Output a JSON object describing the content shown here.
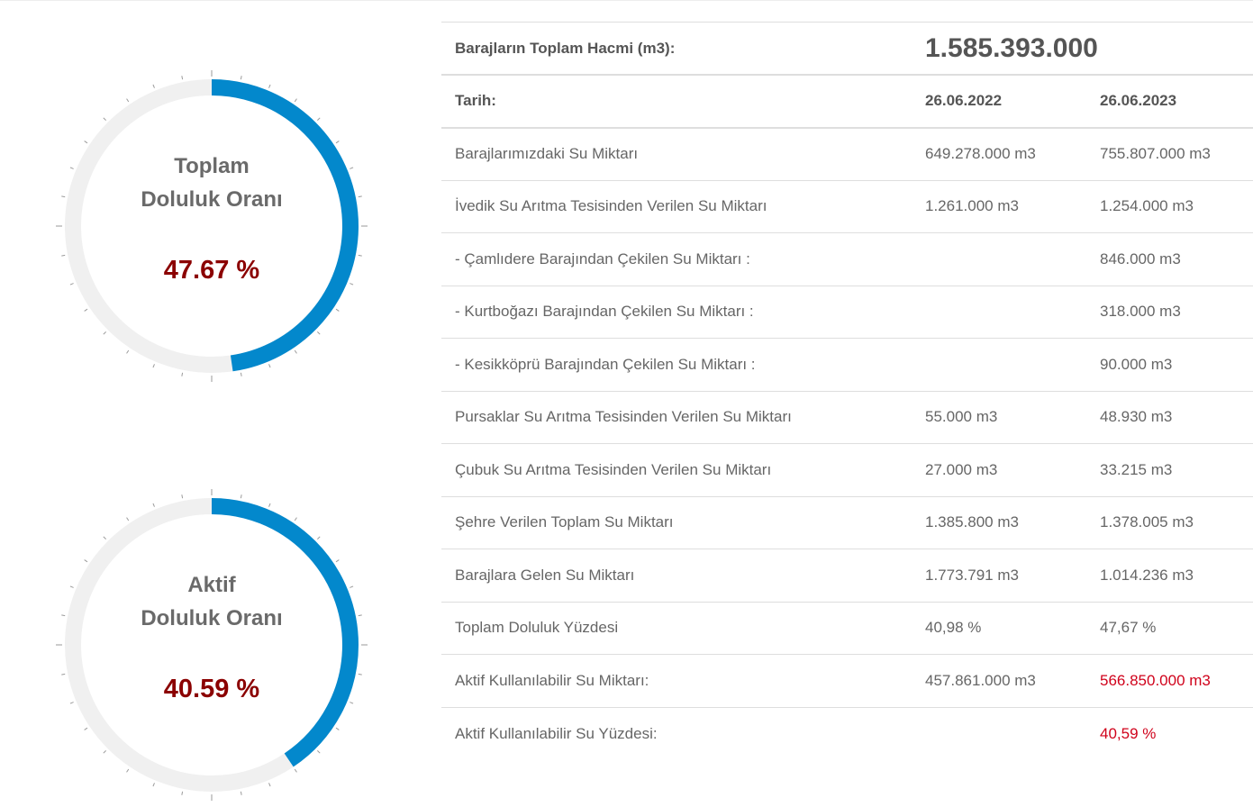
{
  "gauges": [
    {
      "label_line1": "Toplam",
      "label_line2": "Doluluk Oranı",
      "value_text": "47.67 %",
      "fill_percent": 47.67
    },
    {
      "label_line1": "Aktif",
      "label_line2": "Doluluk Oranı",
      "value_text": "40.59 %",
      "fill_percent": 40.59
    }
  ],
  "colors": {
    "gauge_fill": "#0388cc",
    "gauge_track": "#f0f0f0",
    "value": "#8b0000",
    "highlight": "#d0021b"
  },
  "table": {
    "total_label": "Barajların Toplam Hacmi (m3):",
    "total_value": "1.585.393.000",
    "date_label": "Tarih:",
    "date1": "26.06.2022",
    "date2": "26.06.2023",
    "rows": [
      {
        "label": "Barajlarımızdaki Su Miktarı",
        "v1": "649.278.000 m3",
        "v2": "755.807.000 m3"
      },
      {
        "label": "İvedik Su Arıtma Tesisinden Verilen Su Miktarı",
        "v1": "1.261.000 m3",
        "v2": "1.254.000 m3"
      },
      {
        "label": "- Çamlıdere Barajından Çekilen Su Miktarı :",
        "v1": "",
        "v2": "846.000 m3"
      },
      {
        "label": "- Kurtboğazı Barajından Çekilen Su Miktarı :",
        "v1": "",
        "v2": "318.000 m3"
      },
      {
        "label": "- Kesikköprü Barajından Çekilen Su Miktarı :",
        "v1": "",
        "v2": "90.000 m3"
      },
      {
        "label": "Pursaklar Su Arıtma Tesisinden Verilen Su Miktarı",
        "v1": "55.000 m3",
        "v2": "48.930 m3"
      },
      {
        "label": "Çubuk Su Arıtma Tesisinden Verilen Su Miktarı",
        "v1": "27.000 m3",
        "v2": "33.215 m3"
      },
      {
        "label": "Şehre Verilen Toplam Su Miktarı",
        "v1": "1.385.800 m3",
        "v2": "1.378.005 m3"
      },
      {
        "label": "Barajlara Gelen Su Miktarı",
        "v1": "1.773.791 m3",
        "v2": "1.014.236 m3"
      },
      {
        "label": "Toplam Doluluk Yüzdesi",
        "v1": "40,98 %",
        "v2": "47,67 %"
      },
      {
        "label": "Aktif Kullanılabilir Su Miktarı:",
        "v1": "457.861.000 m3",
        "v2": "566.850.000 m3"
      },
      {
        "label": "Aktif Kullanılabilir Su Yüzdesi:",
        "v1": "",
        "v2": "40,59 %"
      }
    ]
  }
}
